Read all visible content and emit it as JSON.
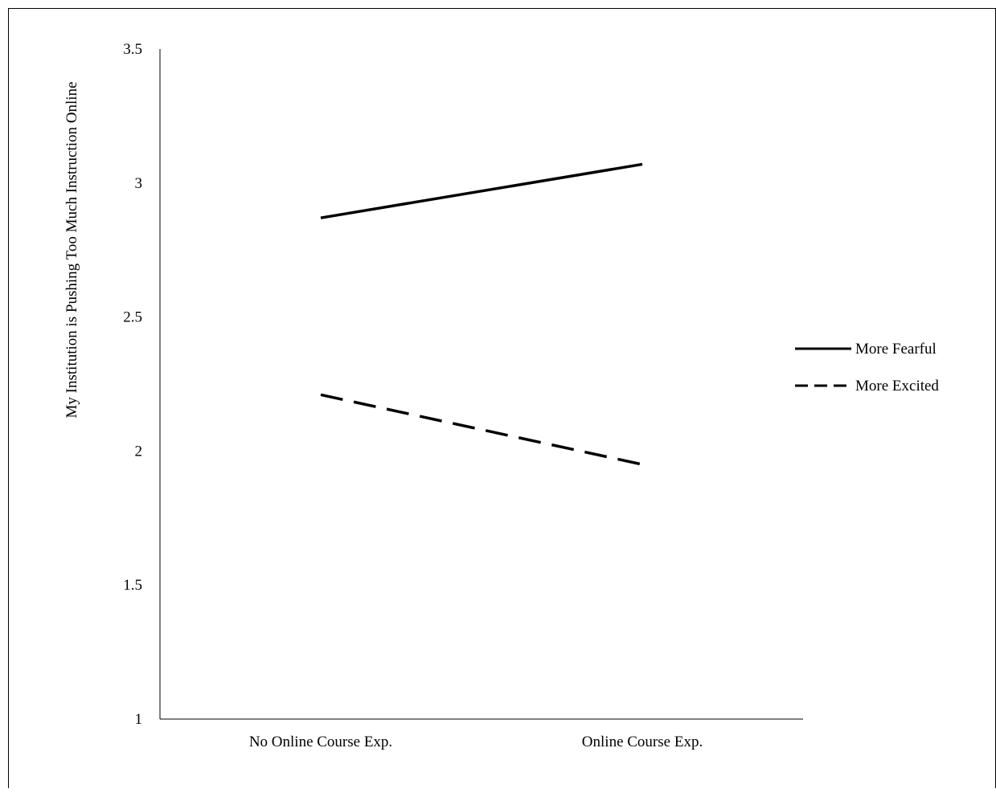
{
  "chart_data": {
    "type": "line",
    "title": "",
    "xlabel": "",
    "ylabel": "My Institution is Pushing Too Much Instruction Online",
    "categories": [
      "No Online Course Exp.",
      "Online Course Exp."
    ],
    "ylim": [
      1,
      3.5
    ],
    "yticks": [
      "1",
      "1.5",
      "2",
      "2.5",
      "3",
      "3.5"
    ],
    "ytick_values": [
      1,
      1.5,
      2,
      2.5,
      3,
      3.5
    ],
    "grid": false,
    "legend_position": "right",
    "series": [
      {
        "name": "More Fearful",
        "values": [
          2.87,
          3.07
        ],
        "style": "solid",
        "color": "#000000"
      },
      {
        "name": "More Excited",
        "values": [
          2.21,
          1.95
        ],
        "style": "dashed",
        "color": "#000000"
      }
    ]
  }
}
